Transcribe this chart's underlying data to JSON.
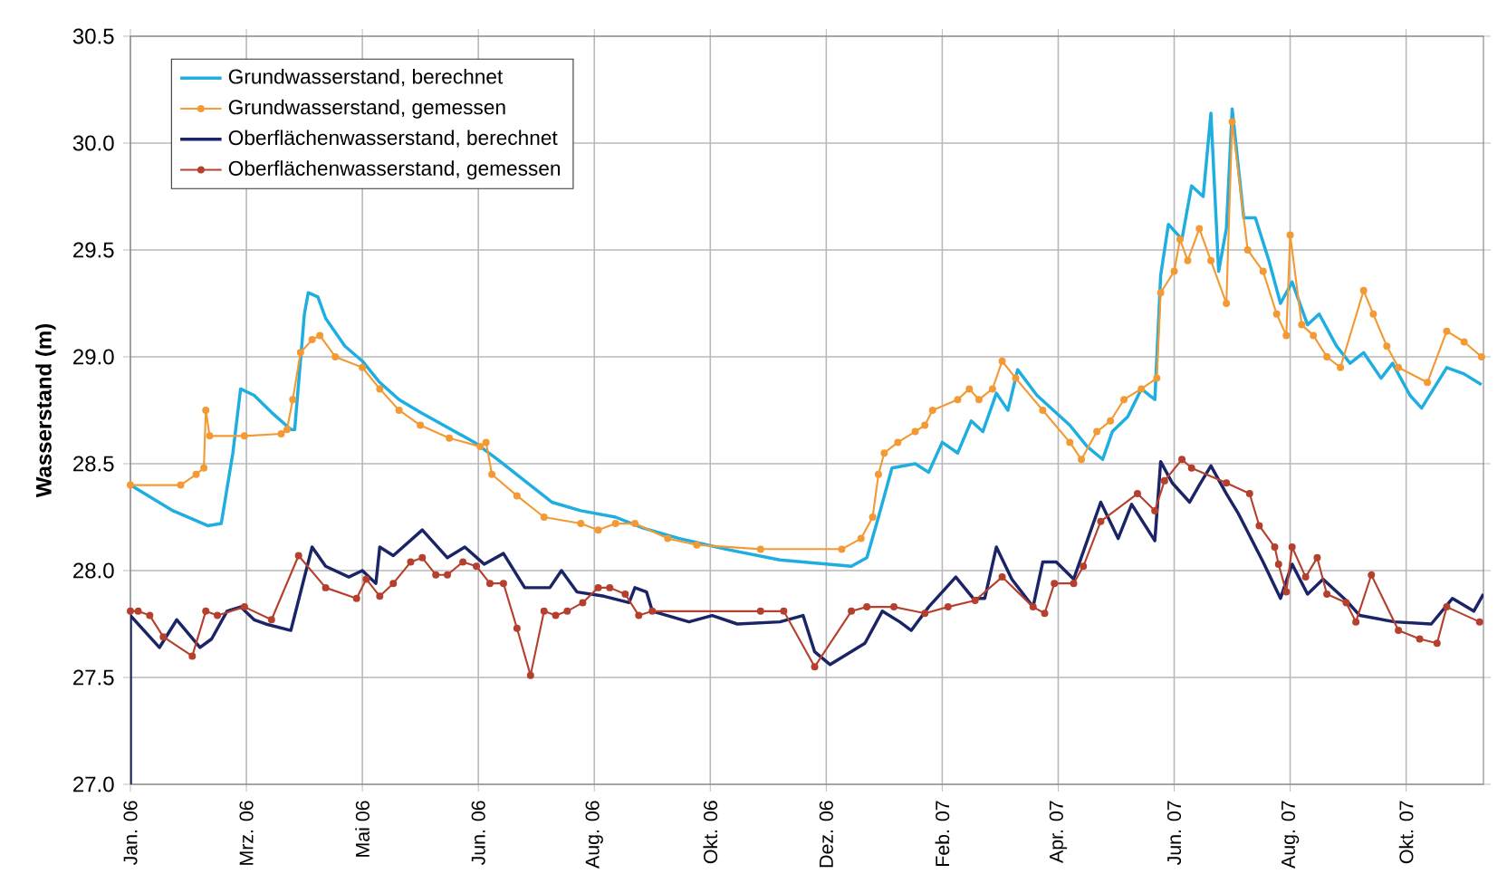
{
  "chart_data": {
    "type": "line",
    "ylabel": "Wasserstand (m)",
    "xlim": [
      "2006-01-01",
      "2007-12-02"
    ],
    "ylim": [
      27.0,
      30.5
    ],
    "xticks": [
      {
        "value": "2006-01-01",
        "label": "Jan. 06"
      },
      {
        "value": "2006-03-02",
        "label": "Mrz. 06"
      },
      {
        "value": "2006-05-01",
        "label": "Mai 06"
      },
      {
        "value": "2006-06-30",
        "label": "Jun. 06"
      },
      {
        "value": "2006-08-29",
        "label": "Aug. 06"
      },
      {
        "value": "2006-10-28",
        "label": "Okt. 06"
      },
      {
        "value": "2006-12-27",
        "label": "Dez. 06"
      },
      {
        "value": "2007-02-25",
        "label": "Feb. 07"
      },
      {
        "value": "2007-04-26",
        "label": "Apr. 07"
      },
      {
        "value": "2007-06-25",
        "label": "Jun. 07"
      },
      {
        "value": "2007-08-24",
        "label": "Aug. 07"
      },
      {
        "value": "2007-10-23",
        "label": "Okt. 07"
      }
    ],
    "yticks": [
      {
        "value": 27,
        "label": "27.0"
      },
      27.5,
      {
        "value": 28,
        "label": "28.0"
      },
      28.5,
      {
        "value": 29,
        "label": "29.0"
      },
      29.5,
      {
        "value": 30,
        "label": "30.0"
      },
      30.5
    ],
    "grid": true,
    "legend": "top left",
    "series": [
      {
        "name": "Grundwasserstand, berechnet",
        "color": "#1eaee0",
        "marker": "none",
        "x": [
          "2006-01-01",
          "2006-01-23",
          "2006-02-10",
          "2006-02-17",
          "2006-02-23",
          "2006-02-27",
          "2006-03-06",
          "2006-03-15",
          "2006-03-25",
          "2006-03-27",
          "2006-04-01",
          "2006-04-03",
          "2006-04-08",
          "2006-04-12",
          "2006-04-22",
          "2006-05-01",
          "2006-05-10",
          "2006-05-20",
          "2006-05-31",
          "2006-06-12",
          "2006-06-28",
          "2006-07-10",
          "2006-07-24",
          "2006-08-07",
          "2006-08-22",
          "2006-09-09",
          "2006-09-23",
          "2006-10-12",
          "2006-11-05",
          "2006-12-03",
          "2007-01-09",
          "2007-01-17",
          "2007-01-23",
          "2007-01-30",
          "2007-02-11",
          "2007-02-18",
          "2007-02-25",
          "2007-03-05",
          "2007-03-12",
          "2007-03-18",
          "2007-03-25",
          "2007-03-31",
          "2007-04-05",
          "2007-04-15",
          "2007-05-02",
          "2007-05-11",
          "2007-05-19",
          "2007-05-24",
          "2007-06-01",
          "2007-06-08",
          "2007-06-15",
          "2007-06-18",
          "2007-06-22",
          "2007-06-29",
          "2007-07-04",
          "2007-07-10",
          "2007-07-14",
          "2007-07-18",
          "2007-07-22",
          "2007-07-25",
          "2007-07-31",
          "2007-08-06",
          "2007-08-13",
          "2007-08-19",
          "2007-08-25",
          "2007-09-02",
          "2007-09-08",
          "2007-09-17",
          "2007-09-24",
          "2007-10-01",
          "2007-10-10",
          "2007-10-16",
          "2007-10-25",
          "2007-10-31",
          "2007-11-13",
          "2007-11-22",
          "2007-12-01"
        ],
        "values": [
          28.4,
          28.28,
          28.21,
          28.22,
          28.55,
          28.85,
          28.82,
          28.74,
          28.66,
          28.66,
          29.2,
          29.3,
          29.28,
          29.18,
          29.05,
          28.98,
          28.88,
          28.8,
          28.74,
          28.68,
          28.6,
          28.52,
          28.42,
          28.32,
          28.28,
          28.25,
          28.2,
          28.15,
          28.1,
          28.05,
          28.02,
          28.06,
          28.25,
          28.48,
          28.5,
          28.46,
          28.6,
          28.55,
          28.7,
          28.65,
          28.83,
          28.75,
          28.94,
          28.82,
          28.68,
          28.58,
          28.52,
          28.65,
          28.72,
          28.85,
          28.8,
          29.38,
          29.62,
          29.55,
          29.8,
          29.75,
          30.14,
          29.4,
          29.6,
          30.16,
          29.65,
          29.65,
          29.45,
          29.25,
          29.35,
          29.15,
          29.2,
          29.05,
          28.97,
          29.02,
          28.9,
          28.97,
          28.82,
          28.76,
          28.95,
          28.92,
          28.87
        ]
      },
      {
        "name": "Grundwasserstand, gemessen",
        "color": "#f39a35",
        "marker": "circle",
        "x": [
          "2006-01-01",
          "2006-01-27",
          "2006-02-04",
          "2006-02-08",
          "2006-02-09",
          "2006-02-11",
          "2006-03-01",
          "2006-03-20",
          "2006-03-23",
          "2006-03-26",
          "2006-03-30",
          "2006-04-05",
          "2006-04-09",
          "2006-04-17",
          "2006-05-01",
          "2006-05-10",
          "2006-05-20",
          "2006-05-31",
          "2006-06-15",
          "2006-07-01",
          "2006-07-04",
          "2006-07-07",
          "2006-07-20",
          "2006-08-03",
          "2006-08-22",
          "2006-08-31",
          "2006-09-09",
          "2006-09-19",
          "2006-10-06",
          "2006-10-21",
          "2006-11-23",
          "2007-01-04",
          "2007-01-14",
          "2007-01-20",
          "2007-01-23",
          "2007-01-26",
          "2007-02-02",
          "2007-02-11",
          "2007-02-16",
          "2007-02-20",
          "2007-03-05",
          "2007-03-11",
          "2007-03-16",
          "2007-03-23",
          "2007-03-28",
          "2007-04-04",
          "2007-04-18",
          "2007-05-02",
          "2007-05-08",
          "2007-05-16",
          "2007-05-23",
          "2007-05-30",
          "2007-06-08",
          "2007-06-16",
          "2007-06-18",
          "2007-06-25",
          "2007-06-28",
          "2007-07-02",
          "2007-07-08",
          "2007-07-14",
          "2007-07-22",
          "2007-07-25",
          "2007-08-02",
          "2007-08-10",
          "2007-08-17",
          "2007-08-22",
          "2007-08-24",
          "2007-08-30",
          "2007-09-05",
          "2007-09-12",
          "2007-09-19",
          "2007-10-01",
          "2007-10-06",
          "2007-10-13",
          "2007-10-19",
          "2007-11-03",
          "2007-11-13",
          "2007-11-22",
          "2007-12-01"
        ],
        "values": [
          28.4,
          28.4,
          28.45,
          28.48,
          28.75,
          28.63,
          28.63,
          28.64,
          28.66,
          28.8,
          29.02,
          29.08,
          29.1,
          29.0,
          28.95,
          28.85,
          28.75,
          28.68,
          28.62,
          28.58,
          28.6,
          28.45,
          28.35,
          28.25,
          28.22,
          28.19,
          28.22,
          28.22,
          28.15,
          28.12,
          28.1,
          28.1,
          28.15,
          28.25,
          28.45,
          28.55,
          28.6,
          28.65,
          28.68,
          28.75,
          28.8,
          28.85,
          28.8,
          28.85,
          28.98,
          28.9,
          28.75,
          28.6,
          28.52,
          28.65,
          28.7,
          28.8,
          28.85,
          28.9,
          29.3,
          29.4,
          29.55,
          29.45,
          29.6,
          29.45,
          29.25,
          30.1,
          29.5,
          29.4,
          29.2,
          29.1,
          29.57,
          29.15,
          29.1,
          29.0,
          28.95,
          29.31,
          29.2,
          29.05,
          28.95,
          28.88,
          29.12,
          29.07,
          29.0
        ]
      },
      {
        "name": "Oberflächenwasserstand, berechnet",
        "color": "#1b2466",
        "marker": "none",
        "x": [
          "2006-01-01",
          "2006-01-01",
          "2006-01-16",
          "2006-01-25",
          "2006-02-06",
          "2006-02-12",
          "2006-02-20",
          "2006-02-27",
          "2006-03-06",
          "2006-03-12",
          "2006-03-25",
          "2006-04-05",
          "2006-04-12",
          "2006-04-24",
          "2006-05-01",
          "2006-05-08",
          "2006-05-10",
          "2006-05-17",
          "2006-06-01",
          "2006-06-14",
          "2006-06-23",
          "2006-07-03",
          "2006-07-13",
          "2006-07-24",
          "2006-08-06",
          "2006-08-12",
          "2006-08-20",
          "2006-09-03",
          "2006-09-16",
          "2006-09-19",
          "2006-09-25",
          "2006-09-28",
          "2006-10-17",
          "2006-10-29",
          "2006-11-11",
          "2006-12-03",
          "2006-12-15",
          "2006-12-21",
          "2006-12-29",
          "2007-01-16",
          "2007-01-25",
          "2007-02-03",
          "2007-02-09",
          "2007-02-18",
          "2007-03-04",
          "2007-03-13",
          "2007-03-19",
          "2007-03-25",
          "2007-04-02",
          "2007-04-13",
          "2007-04-18",
          "2007-04-25",
          "2007-05-04",
          "2007-05-18",
          "2007-05-27",
          "2007-06-03",
          "2007-06-15",
          "2007-06-18",
          "2007-06-24",
          "2007-07-03",
          "2007-07-08",
          "2007-07-14",
          "2007-07-22",
          "2007-07-28",
          "2007-08-10",
          "2007-08-19",
          "2007-08-25",
          "2007-09-02",
          "2007-09-10",
          "2007-09-22",
          "2007-09-29",
          "2007-10-17",
          "2007-11-05",
          "2007-11-16",
          "2007-11-27",
          "2007-12-02"
        ],
        "values": [
          27.0,
          27.79,
          27.64,
          27.77,
          27.64,
          27.68,
          27.81,
          27.83,
          27.77,
          27.75,
          27.72,
          28.11,
          28.02,
          27.97,
          28.0,
          27.94,
          28.11,
          28.07,
          28.19,
          28.06,
          28.11,
          28.03,
          28.08,
          27.92,
          27.92,
          28.0,
          27.9,
          27.88,
          27.85,
          27.92,
          27.9,
          27.81,
          27.76,
          27.79,
          27.75,
          27.76,
          27.79,
          27.62,
          27.56,
          27.66,
          27.81,
          27.76,
          27.72,
          27.83,
          27.97,
          27.87,
          27.87,
          28.11,
          27.96,
          27.83,
          28.04,
          28.04,
          27.96,
          28.32,
          28.15,
          28.31,
          28.14,
          28.51,
          28.41,
          28.32,
          28.4,
          28.49,
          28.36,
          28.27,
          28.04,
          27.87,
          28.03,
          27.89,
          27.96,
          27.86,
          27.79,
          27.76,
          27.75,
          27.87,
          27.81,
          27.89
        ]
      },
      {
        "name": "Oberflächenwasserstand, gemessen",
        "color": "#b5402e",
        "marker": "circle",
        "x": [
          "2006-01-01",
          "2006-01-05",
          "2006-01-11",
          "2006-01-18",
          "2006-02-02",
          "2006-02-09",
          "2006-02-15",
          "2006-03-01",
          "2006-03-15",
          "2006-03-29",
          "2006-04-12",
          "2006-04-28",
          "2006-05-03",
          "2006-05-10",
          "2006-05-17",
          "2006-05-26",
          "2006-06-01",
          "2006-06-08",
          "2006-06-14",
          "2006-06-22",
          "2006-06-29",
          "2006-07-06",
          "2006-07-13",
          "2006-07-20",
          "2006-07-27",
          "2006-08-03",
          "2006-08-09",
          "2006-08-15",
          "2006-08-23",
          "2006-08-31",
          "2006-09-06",
          "2006-09-14",
          "2006-09-21",
          "2006-09-28",
          "2006-11-23",
          "2006-12-05",
          "2006-12-21",
          "2007-01-09",
          "2007-01-17",
          "2007-01-31",
          "2007-02-16",
          "2007-02-28",
          "2007-03-14",
          "2007-03-28",
          "2007-04-13",
          "2007-04-19",
          "2007-04-24",
          "2007-05-04",
          "2007-05-09",
          "2007-05-18",
          "2007-06-06",
          "2007-06-15",
          "2007-06-20",
          "2007-06-29",
          "2007-07-04",
          "2007-07-22",
          "2007-08-03",
          "2007-08-08",
          "2007-08-16",
          "2007-08-18",
          "2007-08-22",
          "2007-08-25",
          "2007-09-01",
          "2007-09-07",
          "2007-09-12",
          "2007-09-22",
          "2007-09-27",
          "2007-10-05",
          "2007-10-19",
          "2007-10-30",
          "2007-11-08",
          "2007-11-13",
          "2007-11-30"
        ],
        "values": [
          27.81,
          27.81,
          27.79,
          27.69,
          27.6,
          27.81,
          27.79,
          27.83,
          27.77,
          28.07,
          27.92,
          27.87,
          27.96,
          27.88,
          27.94,
          28.04,
          28.06,
          27.98,
          27.98,
          28.04,
          28.02,
          27.94,
          27.94,
          27.73,
          27.51,
          27.81,
          27.79,
          27.81,
          27.85,
          27.92,
          27.92,
          27.89,
          27.79,
          27.81,
          27.81,
          27.81,
          27.55,
          27.81,
          27.83,
          27.83,
          27.8,
          27.83,
          27.86,
          27.97,
          27.83,
          27.8,
          27.94,
          27.94,
          28.02,
          28.23,
          28.36,
          28.28,
          28.42,
          28.52,
          28.48,
          28.41,
          28.36,
          28.21,
          28.11,
          28.03,
          27.9,
          28.11,
          27.97,
          28.06,
          27.89,
          27.85,
          27.76,
          27.98,
          27.72,
          27.68,
          27.66,
          27.83,
          27.76
        ]
      }
    ]
  }
}
